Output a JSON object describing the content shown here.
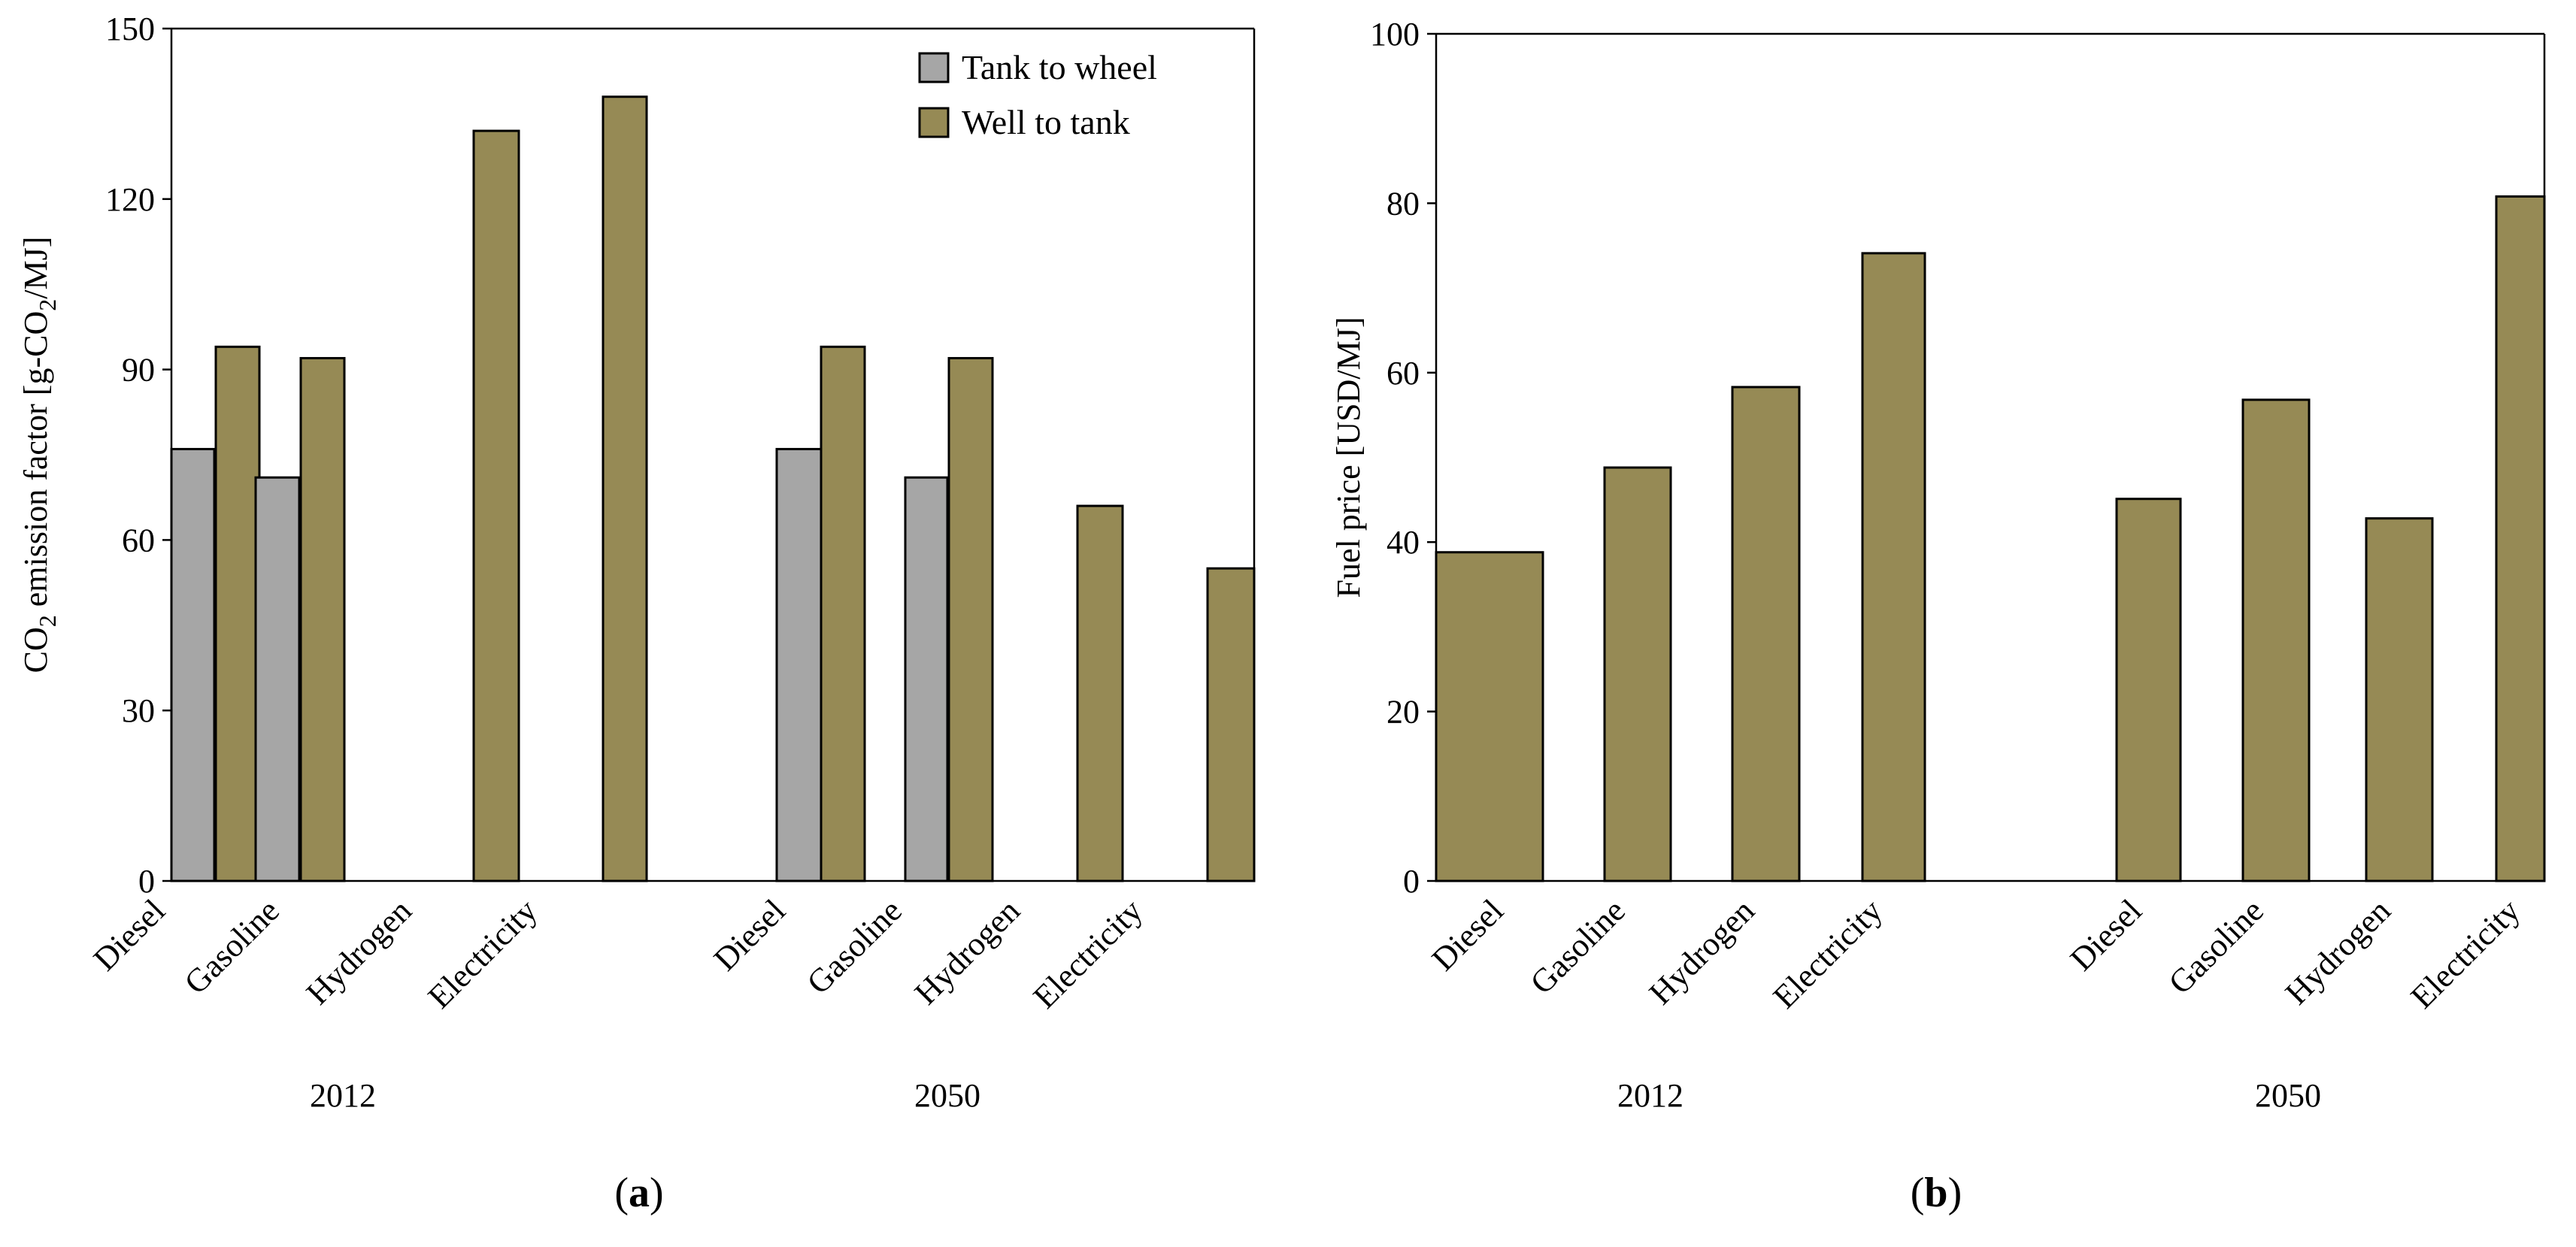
{
  "colors": {
    "tank_to_wheel": "#a6a6a6",
    "well_to_tank": "#968a55"
  },
  "chart_data": [
    {
      "id": "a",
      "type": "bar",
      "panel_label": "a",
      "ylabel_parts": [
        "CO",
        "2",
        " emission factor [g-CO",
        "2",
        "/MJ]"
      ],
      "ylim": [
        0,
        150
      ],
      "yticks": [
        0,
        30,
        60,
        90,
        120,
        150
      ],
      "groups": [
        "2012",
        "2050"
      ],
      "categories": [
        "Diesel",
        "Gasoline",
        "Hydrogen",
        "Electricity",
        "Diesel",
        "Gasoline",
        "Hydrogen",
        "Electricity"
      ],
      "series": [
        {
          "name": "Tank to wheel",
          "color_key": "tank_to_wheel",
          "values": [
            76,
            71,
            0,
            0,
            76,
            71,
            0,
            0
          ]
        },
        {
          "name": "Well to tank",
          "color_key": "well_to_tank",
          "values": [
            94,
            92,
            132,
            138,
            94,
            92,
            66,
            55
          ]
        }
      ],
      "legend": {
        "position": "top-right",
        "entries": [
          "Tank to wheel",
          "Well to tank"
        ]
      }
    },
    {
      "id": "b",
      "type": "bar",
      "panel_label": "b",
      "ylabel": "Fuel price [USD/MJ]",
      "ylim": [
        0,
        100
      ],
      "yticks": [
        0,
        20,
        40,
        60,
        80,
        100
      ],
      "groups": [
        "2012",
        "2050"
      ],
      "categories": [
        "Diesel",
        "Gasoline",
        "Hydrogen",
        "Electricity",
        "Diesel",
        "Gasoline",
        "Hydrogen",
        "Electricity"
      ],
      "series": [
        {
          "name": "Fuel price",
          "color_key": "well_to_tank",
          "values": [
            38.8,
            48.8,
            58.3,
            74.1,
            45.1,
            56.8,
            42.8,
            80.8
          ]
        }
      ]
    }
  ]
}
